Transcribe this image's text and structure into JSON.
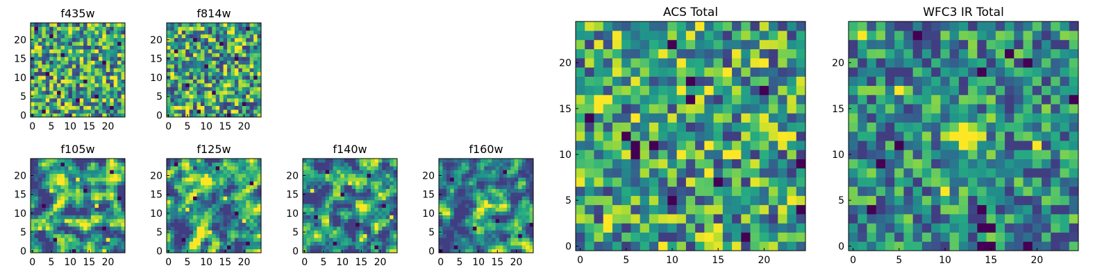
{
  "colors": {
    "colormap": "viridis",
    "frame": "#000000",
    "background": "#ffffff"
  },
  "chart_data": [
    {
      "type": "heatmap",
      "title": "f435w",
      "grid_size": [
        25,
        25
      ],
      "origin": "lower",
      "xlim": [
        0,
        24
      ],
      "ylim": [
        0,
        24
      ],
      "xticks": [
        0,
        5,
        10,
        15,
        20
      ],
      "yticks": [
        0,
        5,
        10,
        15,
        20
      ],
      "pattern": "noise",
      "seed": 11,
      "dark_pixels": [
        [
          1,
          23
        ],
        [
          5,
          21
        ],
        [
          23,
          19
        ],
        [
          8,
          16
        ],
        [
          19,
          14
        ],
        [
          4,
          11
        ],
        [
          14,
          9
        ],
        [
          7,
          6
        ],
        [
          17,
          5
        ],
        [
          12,
          4
        ],
        [
          21,
          2
        ],
        [
          3,
          1
        ]
      ],
      "bright_pixels": [
        [
          15,
          24
        ],
        [
          10,
          22
        ],
        [
          19,
          21
        ],
        [
          2,
          18
        ],
        [
          13,
          15
        ],
        [
          6,
          10
        ],
        [
          22,
          8
        ],
        [
          9,
          3
        ]
      ]
    },
    {
      "type": "heatmap",
      "title": "f814w",
      "grid_size": [
        25,
        25
      ],
      "origin": "lower",
      "xlim": [
        0,
        24
      ],
      "ylim": [
        0,
        24
      ],
      "xticks": [
        0,
        5,
        10,
        15,
        20
      ],
      "yticks": [
        0,
        5,
        10,
        15,
        20
      ],
      "pattern": "noise",
      "seed": 23,
      "dark_pixels": [
        [
          21,
          23
        ],
        [
          7,
          20
        ],
        [
          14,
          19
        ],
        [
          2,
          17
        ],
        [
          18,
          15
        ],
        [
          10,
          13
        ],
        [
          23,
          10
        ],
        [
          5,
          8
        ],
        [
          12,
          6
        ],
        [
          20,
          3
        ],
        [
          8,
          1
        ],
        [
          16,
          0
        ]
      ],
      "bright_pixels": [
        [
          3,
          22
        ],
        [
          11,
          20
        ],
        [
          19,
          18
        ],
        [
          1,
          11
        ],
        [
          15,
          13
        ],
        [
          6,
          5
        ],
        [
          22,
          4
        ],
        [
          13,
          2
        ]
      ]
    },
    {
      "type": "heatmap",
      "title": "f105w",
      "grid_size": [
        25,
        25
      ],
      "origin": "lower",
      "xlim": [
        0,
        24
      ],
      "ylim": [
        0,
        24
      ],
      "xticks": [
        0,
        5,
        10,
        15,
        20
      ],
      "yticks": [
        0,
        5,
        10,
        15,
        20
      ],
      "pattern": "smooth",
      "seed": 37,
      "dark_pixels": [
        [
          8,
          23
        ],
        [
          21,
          21
        ],
        [
          3,
          12
        ],
        [
          14,
          16
        ],
        [
          19,
          6
        ],
        [
          6,
          3
        ],
        [
          11,
          0
        ],
        [
          23,
          14
        ]
      ],
      "bright_pixels": [
        [
          12,
          19
        ],
        [
          5,
          16
        ],
        [
          17,
          12
        ],
        [
          9,
          8
        ],
        [
          20,
          3
        ],
        [
          2,
          6
        ]
      ]
    },
    {
      "type": "heatmap",
      "title": "f125w",
      "grid_size": [
        25,
        25
      ],
      "origin": "lower",
      "xlim": [
        0,
        24
      ],
      "ylim": [
        0,
        24
      ],
      "xticks": [
        0,
        5,
        10,
        15,
        20
      ],
      "yticks": [
        0,
        5,
        10,
        15,
        20
      ],
      "pattern": "smooth",
      "seed": 41,
      "dark_pixels": [
        [
          2,
          23
        ],
        [
          13,
          22
        ],
        [
          22,
          18
        ],
        [
          7,
          14
        ],
        [
          18,
          10
        ],
        [
          4,
          3
        ],
        [
          16,
          1
        ],
        [
          21,
          2
        ]
      ],
      "bright_pixels": [
        [
          10,
          20
        ],
        [
          5,
          11
        ],
        [
          15,
          14
        ],
        [
          11,
          5
        ],
        [
          20,
          8
        ],
        [
          8,
          2
        ]
      ]
    },
    {
      "type": "heatmap",
      "title": "f140w",
      "grid_size": [
        25,
        25
      ],
      "origin": "lower",
      "xlim": [
        0,
        24
      ],
      "ylim": [
        0,
        24
      ],
      "xticks": [
        0,
        5,
        10,
        15,
        20
      ],
      "yticks": [
        0,
        5,
        10,
        15,
        20
      ],
      "pattern": "smooth",
      "seed": 53,
      "dark_pixels": [
        [
          6,
          21
        ],
        [
          17,
          20
        ],
        [
          10,
          15
        ],
        [
          21,
          12
        ],
        [
          3,
          9
        ],
        [
          14,
          7
        ],
        [
          8,
          2
        ],
        [
          19,
          1
        ]
      ],
      "bright_pixels": [
        [
          2,
          16
        ],
        [
          12,
          18
        ],
        [
          20,
          15
        ],
        [
          6,
          8
        ],
        [
          16,
          4
        ],
        [
          23,
          9
        ]
      ]
    },
    {
      "type": "heatmap",
      "title": "f160w",
      "grid_size": [
        25,
        25
      ],
      "origin": "lower",
      "xlim": [
        0,
        24
      ],
      "ylim": [
        0,
        24
      ],
      "xticks": [
        0,
        5,
        10,
        15,
        20
      ],
      "yticks": [
        0,
        5,
        10,
        15,
        20
      ],
      "pattern": "smooth_source",
      "seed": 67,
      "source_center": [
        12,
        12
      ],
      "source_radius": 2.6,
      "dark_pixels": [
        [
          0,
          0
        ],
        [
          4,
          1
        ],
        [
          21,
          4
        ],
        [
          17,
          21
        ],
        [
          3,
          19
        ],
        [
          24,
          7
        ],
        [
          9,
          6
        ],
        [
          15,
          8
        ]
      ],
      "bright_pixels": [
        [
          12,
          12
        ],
        [
          13,
          12
        ],
        [
          12,
          13
        ],
        [
          11,
          11
        ]
      ]
    },
    {
      "type": "heatmap",
      "title": "ACS Total",
      "grid_size": [
        25,
        25
      ],
      "origin": "lower",
      "xlim": [
        0,
        24
      ],
      "ylim": [
        0,
        24
      ],
      "xticks": [
        0,
        5,
        10,
        15,
        20
      ],
      "yticks": [
        0,
        5,
        10,
        15,
        20
      ],
      "pattern": "noise",
      "seed": 79,
      "dark_pixels": [
        [
          10,
          22
        ],
        [
          12,
          18
        ],
        [
          20,
          17
        ],
        [
          12,
          16
        ],
        [
          5,
          12
        ],
        [
          6,
          11
        ],
        [
          8,
          11
        ],
        [
          6,
          10
        ],
        [
          24,
          9
        ],
        [
          18,
          1
        ],
        [
          10,
          5
        ],
        [
          15,
          7
        ],
        [
          1,
          14
        ],
        [
          24,
          4
        ]
      ],
      "bright_pixels": [
        [
          16,
          19
        ],
        [
          2,
          16
        ],
        [
          3,
          16
        ],
        [
          14,
          17
        ],
        [
          20,
          20
        ],
        [
          6,
          14
        ],
        [
          14,
          11
        ],
        [
          17,
          10
        ],
        [
          3,
          3
        ],
        [
          3,
          2
        ],
        [
          9,
          0
        ],
        [
          22,
          12
        ]
      ]
    },
    {
      "type": "heatmap",
      "title": "WFC3 IR Total",
      "grid_size": [
        25,
        25
      ],
      "origin": "lower",
      "xlim": [
        0,
        24
      ],
      "ylim": [
        0,
        24
      ],
      "xticks": [
        0,
        5,
        10,
        15,
        20
      ],
      "yticks": [
        0,
        5,
        10,
        15,
        20
      ],
      "pattern": "noise_source",
      "seed": 97,
      "source_center": [
        12,
        12
      ],
      "source_radius": 1.6,
      "dark_pixels": [
        [
          7,
          23
        ],
        [
          17,
          21
        ],
        [
          19,
          20
        ],
        [
          14,
          19
        ],
        [
          5,
          11
        ],
        [
          3,
          9
        ],
        [
          14,
          4
        ],
        [
          14,
          0
        ],
        [
          15,
          0
        ],
        [
          19,
          0
        ],
        [
          14,
          2
        ],
        [
          15,
          2
        ],
        [
          24,
          16
        ],
        [
          2,
          4
        ]
      ],
      "bright_pixels": [
        [
          1,
          23
        ],
        [
          12,
          13
        ],
        [
          12,
          12
        ],
        [
          13,
          12
        ],
        [
          11,
          12
        ],
        [
          5,
          17
        ],
        [
          20,
          11
        ],
        [
          10,
          6
        ]
      ]
    }
  ]
}
